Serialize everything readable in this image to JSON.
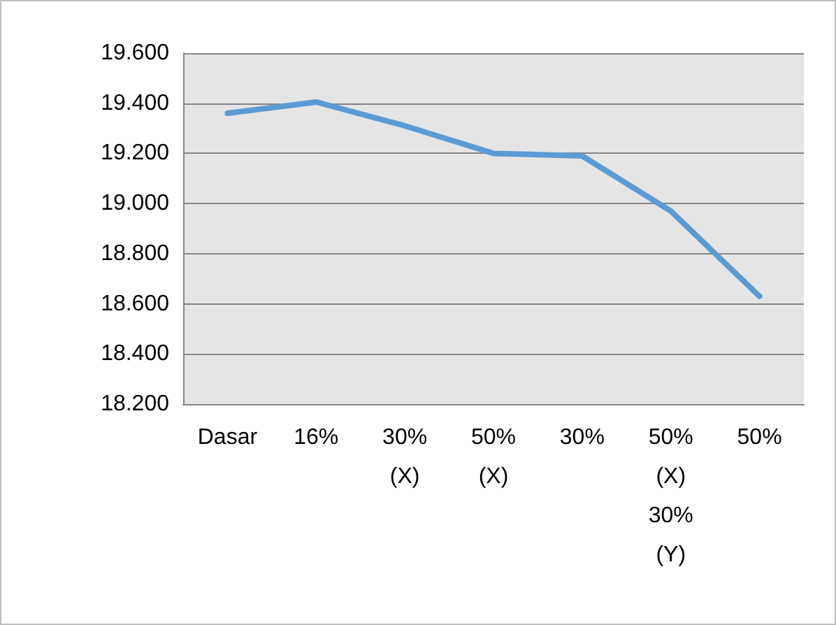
{
  "chart_data": {
    "type": "line",
    "categories": [
      "Dasar",
      "16%",
      "30%\n(X)",
      "50%\n(X)",
      "30%",
      "50%\n(X)\n30%\n(Y)",
      "50%"
    ],
    "series": [
      {
        "color": "#5b9bd5",
        "values": [
          19360,
          19405,
          19310,
          19200,
          19190,
          18970,
          18630
        ]
      }
    ],
    "ylim": [
      18200,
      19600
    ],
    "yticks": [
      {
        "value": 18200,
        "label": "18.200"
      },
      {
        "value": 18400,
        "label": "18.400"
      },
      {
        "value": 18600,
        "label": "18.600"
      },
      {
        "value": 18800,
        "label": "18.800"
      },
      {
        "value": 19000,
        "label": "19.000"
      },
      {
        "value": 19200,
        "label": "19.200"
      },
      {
        "value": 19400,
        "label": "19.400"
      },
      {
        "value": 19600,
        "label": "19.600"
      }
    ],
    "grid": "y",
    "marker": "none",
    "line_style": "solid"
  }
}
